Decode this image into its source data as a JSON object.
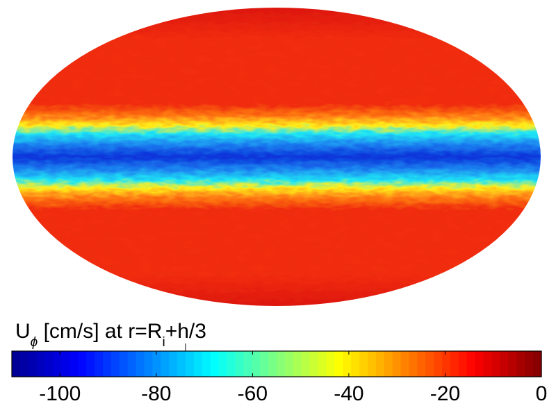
{
  "map": {
    "projection": "Mollweide",
    "pattern": "equatorial retrograde jet",
    "colormap": "jet",
    "colors": {
      "equatorial_core": "#0a2fd8",
      "band_edge_cyan": "#1ee6f5",
      "band_edge_yellow": "#ffef1a",
      "background_red": "#f02a0c",
      "polar_dark_red": "#d8120a"
    }
  },
  "colorbar": {
    "label": {
      "u": "U",
      "phi": "ϕ",
      "units_part": " [cm/s] at r=R",
      "i": "i",
      "tail": "+h/3"
    },
    "range": [
      -110,
      0
    ],
    "ticks": [
      {
        "value": -100,
        "label": "-100"
      },
      {
        "value": -80,
        "label": "-80"
      },
      {
        "value": -60,
        "label": "-60"
      },
      {
        "value": -40,
        "label": "-40"
      },
      {
        "value": -20,
        "label": "-20"
      },
      {
        "value": 0,
        "label": "0"
      }
    ],
    "stops": [
      {
        "value": -110,
        "color": "#00008f"
      },
      {
        "value": -96,
        "color": "#0000ff"
      },
      {
        "value": -68,
        "color": "#00ffff"
      },
      {
        "value": -42,
        "color": "#ffff00"
      },
      {
        "value": -14,
        "color": "#ff0000"
      },
      {
        "value": 0,
        "color": "#800000"
      }
    ],
    "levels": 64
  }
}
